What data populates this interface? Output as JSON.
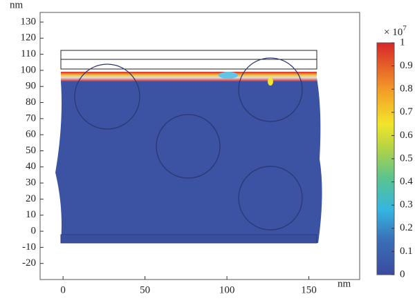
{
  "chart_data": {
    "type": "field",
    "x_label": "nm",
    "y_label": "nm",
    "xlim": [
      -14,
      181
    ],
    "xticks": [
      0,
      50,
      100,
      150
    ],
    "ylim": [
      -30,
      136
    ],
    "yticks": [
      -20,
      -10,
      0,
      10,
      20,
      30,
      40,
      50,
      60,
      70,
      80,
      90,
      100,
      110,
      120,
      130
    ],
    "colorbar": {
      "label": "× 10",
      "exponent": "7",
      "clim": [
        0,
        1
      ],
      "ticks": [
        0,
        0.1,
        0.2,
        0.3,
        0.4,
        0.5,
        0.6,
        0.7,
        0.8,
        0.9,
        1
      ]
    }
  }
}
